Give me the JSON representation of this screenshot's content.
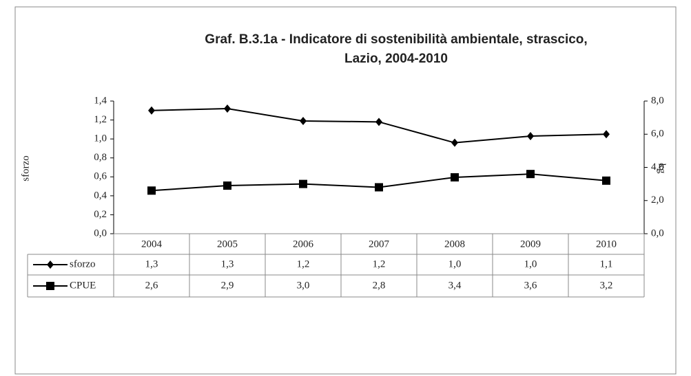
{
  "chart_data": {
    "type": "line",
    "title": [
      "Graf. B.3.1a - Indicatore di sostenibilità ambientale, strascico,",
      "Lazio, 2004-2010"
    ],
    "ylabel": "sforzo",
    "y2label": "kg",
    "categories": [
      "2004",
      "2005",
      "2006",
      "2007",
      "2008",
      "2009",
      "2010"
    ],
    "series": [
      {
        "name": "sforzo",
        "color": "#000000",
        "marker": "diamond",
        "values": [
          1.3,
          1.32,
          1.19,
          1.18,
          0.96,
          1.03,
          1.05
        ],
        "value_labels": [
          "1,3",
          "1,3",
          "1,2",
          "1,2",
          "1,0",
          "1,0",
          "1,1"
        ]
      },
      {
        "name": "CPUE",
        "color": "#000000",
        "marker": "square",
        "axis": "y2",
        "values": [
          2.6,
          2.9,
          3.0,
          2.8,
          3.4,
          3.6,
          3.2
        ],
        "value_labels": [
          "2,6",
          "2,9",
          "3,0",
          "2,8",
          "3,4",
          "3,6",
          "3,2"
        ]
      }
    ],
    "ylim": [
      0,
      1.4
    ],
    "yticks": [
      {
        "value": 0,
        "label": "0,0"
      },
      {
        "value": 0.2,
        "label": "0,2"
      },
      {
        "value": 0.4,
        "label": "0,4"
      },
      {
        "value": 0.6,
        "label": "0,6"
      },
      {
        "value": 0.8,
        "label": "0,8"
      },
      {
        "value": 1.0,
        "label": "1,0"
      },
      {
        "value": 1.2,
        "label": "1,2"
      },
      {
        "value": 1.4,
        "label": "1,4"
      }
    ],
    "y2lim": [
      0,
      8
    ],
    "y2ticks": [
      {
        "value": 0,
        "label": "0,0"
      },
      {
        "value": 2,
        "label": "2,0"
      },
      {
        "value": 4,
        "label": "4,0"
      },
      {
        "value": 6,
        "label": "6,0"
      },
      {
        "value": 8,
        "label": "8,0"
      }
    ],
    "grid": false
  }
}
